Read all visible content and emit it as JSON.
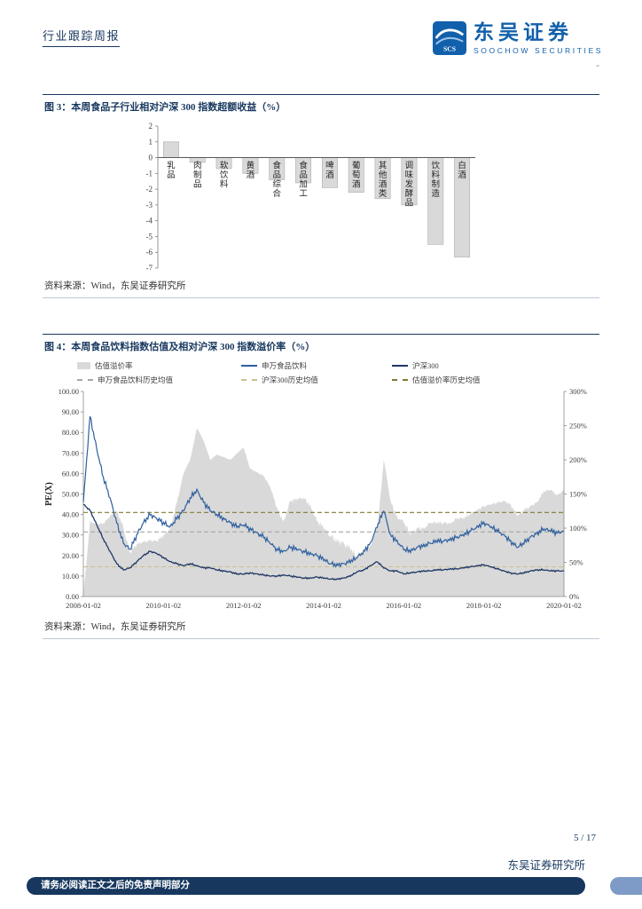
{
  "header": {
    "report_type": "行业跟踪周报",
    "brand_cn": "东吴证券",
    "brand_en": "SOOCHOW SECURITIES",
    "logo_monogram": "SCS",
    "dash": "-",
    "brand_color": "#1260ab"
  },
  "figure3": {
    "title": "图 3：本周食品子行业相对沪深 300 指数超额收益（%）",
    "source": "资料来源：Wind，东吴证券研究所"
  },
  "figure4": {
    "title": "图 4：本周食品饮料指数估值及相对沪深 300 指数溢价率（%）",
    "source": "资料来源：Wind，东吴证券研究所"
  },
  "footer": {
    "page": "5 / 17",
    "institute": "东吴证券研究所",
    "disclaimer": "请务必阅读正文之后的免责声明部分"
  },
  "chart_data": [
    {
      "type": "bar",
      "title": "本周食品子行业相对沪深300指数超额收益（%）",
      "categories": [
        "乳品",
        "肉制品",
        "软饮料",
        "黄酒",
        "食品综合",
        "食品加工",
        "啤酒",
        "葡萄酒",
        "其他酒类",
        "调味发酵品",
        "饮料制造",
        "白酒"
      ],
      "values": [
        1.0,
        -0.3,
        -0.7,
        -1.0,
        -1.4,
        -1.6,
        -1.9,
        -2.2,
        -2.6,
        -3.0,
        -5.5,
        -6.3
      ],
      "ylim": [
        2,
        -7
      ],
      "ytick_step": 1,
      "bar_color": "#d9d9d9",
      "bar_border": "#aeaeae",
      "grid": false,
      "legend_position": "none"
    },
    {
      "type": "line",
      "title": "本周食品饮料指数估值及相对沪深300指数溢价率（%）",
      "ylabel_left": "PE(X)",
      "left_axis_range": [
        0,
        100
      ],
      "right_axis_range_pct": [
        0,
        300
      ],
      "left_ticks": [
        0,
        10,
        20,
        30,
        40,
        50,
        60,
        70,
        80,
        90,
        100
      ],
      "right_ticks_pct": [
        0,
        50,
        100,
        150,
        200,
        250,
        300
      ],
      "x_ticks": [
        "2008-01-02",
        "2010-01-02",
        "2012-01-02",
        "2014-01-02",
        "2016-01-02",
        "2018-01-02",
        "2020-01-02"
      ],
      "series": [
        {
          "name": "申万食品饮料",
          "axis": "left",
          "color": "#2e5f9e",
          "values": [
            46,
            88,
            72,
            58,
            48,
            36,
            26,
            23,
            30,
            36,
            40,
            38,
            36,
            34,
            38,
            42,
            48,
            52,
            46,
            42,
            40,
            38,
            36,
            34,
            35,
            33,
            31,
            29,
            26,
            23,
            22,
            24,
            23,
            22,
            21,
            20,
            18,
            16,
            15.5,
            16,
            17,
            19,
            22,
            26,
            34,
            42,
            30,
            27,
            23,
            22,
            24,
            25,
            26,
            27,
            27,
            28,
            29,
            30,
            32,
            34,
            36,
            34,
            32,
            30,
            27,
            24,
            26,
            29,
            31,
            33,
            32,
            31,
            32
          ]
        },
        {
          "name": "沪深300",
          "axis": "left",
          "color": "#1f3864",
          "values": [
            45,
            42,
            35,
            28,
            22,
            16,
            13,
            14,
            17,
            20,
            22,
            21,
            19,
            17,
            16,
            15,
            16,
            15,
            14,
            14,
            13,
            12.5,
            12,
            11,
            11,
            11.5,
            11,
            10.5,
            10,
            10,
            10.5,
            10,
            9.5,
            9,
            9,
            9.5,
            9,
            8.5,
            8.5,
            9,
            10,
            12,
            13,
            15,
            17,
            14,
            12.5,
            12.5,
            11,
            11.5,
            12,
            12.5,
            12.5,
            13,
            13,
            13.5,
            13.5,
            14,
            14.5,
            15,
            15.5,
            14.5,
            13.5,
            12.5,
            11.5,
            11,
            11.5,
            12.5,
            13,
            13,
            12.5,
            12.5,
            12.5
          ]
        }
      ],
      "premium_area": {
        "name": "估值溢价率",
        "axis": "right",
        "color": "#d9d9d9",
        "derived": "(申万食品饮料PE / 沪深300PE - 1) * 100"
      },
      "means": [
        {
          "name": "申万食品饮料历史均值",
          "value": 31.5,
          "axis": "left",
          "color": "#a6a6a6"
        },
        {
          "name": "沪深300历史均值",
          "value": 14.5,
          "axis": "left",
          "color": "#cdc08e"
        },
        {
          "name": "估值溢价率历史均值",
          "value": 123,
          "axis": "right",
          "color": "#7f7b33"
        }
      ],
      "legend_rows": [
        [
          {
            "label": "估值溢价率",
            "swatch": "area",
            "color": "#d9d9d9"
          },
          {
            "label": "申万食品饮料",
            "swatch": "line",
            "color": "#2e5f9e"
          },
          {
            "label": "沪深300",
            "swatch": "line",
            "color": "#1f3864"
          }
        ],
        [
          {
            "label": "申万食品饮料历史均值",
            "swatch": "dash",
            "color": "#a6a6a6"
          },
          {
            "label": "沪深300历史均值",
            "swatch": "dash",
            "color": "#cdc08e"
          },
          {
            "label": "估值溢价率历史均值",
            "swatch": "dash",
            "color": "#7f7b33"
          }
        ]
      ],
      "grid": false,
      "legend_position": "top"
    }
  ]
}
